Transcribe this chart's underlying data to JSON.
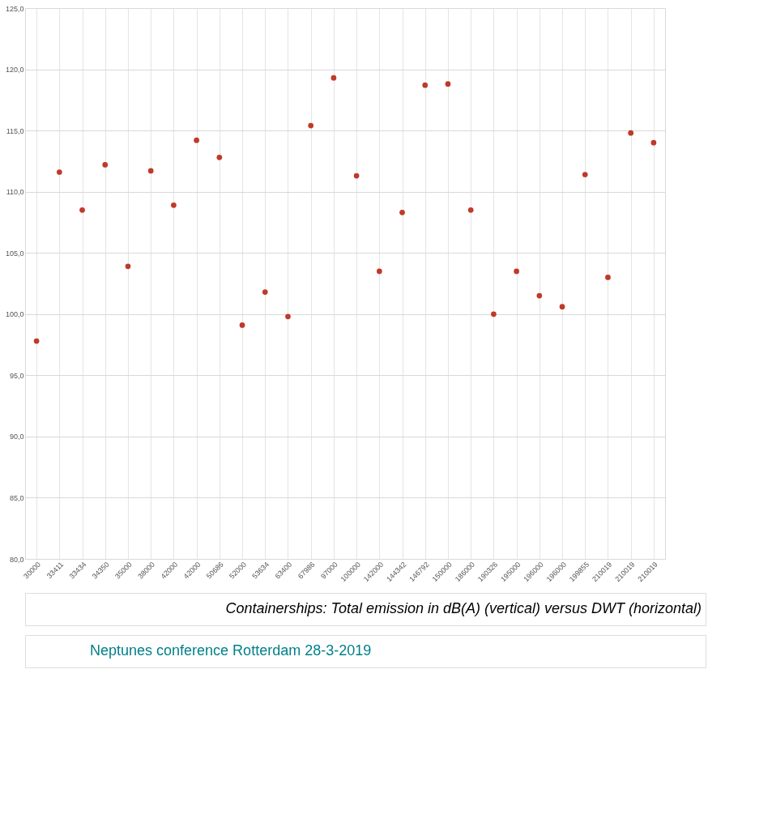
{
  "chart_data": {
    "type": "scatter",
    "categories": [
      "30000",
      "33411",
      "33434",
      "34350",
      "35000",
      "38000",
      "42000",
      "42000",
      "50686",
      "52000",
      "53634",
      "63400",
      "67986",
      "97000",
      "100000",
      "142000",
      "144342",
      "146792",
      "150000",
      "186000",
      "190326",
      "195000",
      "196000",
      "196000",
      "199855",
      "210019",
      "210019",
      "210019"
    ],
    "series": [
      {
        "color": "#c0392b",
        "values": [
          97.8,
          111.6,
          108.5,
          112.2,
          103.9,
          111.7,
          108.9,
          114.2,
          112.8,
          99.1,
          101.8,
          99.8,
          115.4,
          119.3,
          111.3,
          103.5,
          108.3,
          118.7,
          118.8,
          108.5,
          100.0,
          103.5,
          101.5,
          100.6,
          111.4,
          103.0,
          114.8,
          114.0
        ]
      }
    ],
    "ylim": [
      80,
      125
    ],
    "yticks": [
      {
        "value": 80,
        "label": "80,0"
      },
      {
        "value": 85,
        "label": "85,0"
      },
      {
        "value": 90,
        "label": "90,0"
      },
      {
        "value": 95,
        "label": "95,0"
      },
      {
        "value": 100,
        "label": "100,0"
      },
      {
        "value": 105,
        "label": "105,0"
      },
      {
        "value": 110,
        "label": "110,0"
      },
      {
        "value": 115,
        "label": "115,0"
      },
      {
        "value": 120,
        "label": "120,0"
      },
      {
        "value": 125,
        "label": "125,0"
      }
    ],
    "grid": true,
    "marker": "circle",
    "annotations": [
      "Containerships: Total emission in dB(A) (vertical) versus DWT (horizontal)",
      "Neptunes conference Rotterdam 28-3-2019"
    ]
  }
}
